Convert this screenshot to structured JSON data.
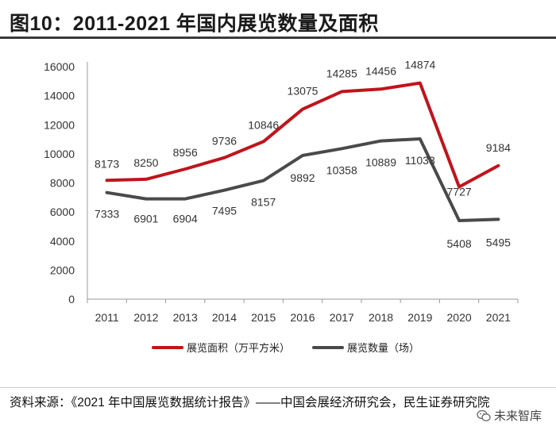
{
  "header": {
    "title": "图10：2011-2021 年国内展览数量及面积"
  },
  "chart_data": {
    "type": "line",
    "title": "图10：2011-2021 年国内展览数量及面积",
    "categories": [
      "2011",
      "2012",
      "2013",
      "2014",
      "2015",
      "2016",
      "2017",
      "2018",
      "2019",
      "2020",
      "2021"
    ],
    "ylim": [
      0,
      16000
    ],
    "yticks": [
      "0",
      "2000",
      "4000",
      "6000",
      "8000",
      "10000",
      "12000",
      "14000",
      "16000"
    ],
    "series": [
      {
        "name": "展览面积（万平方米）",
        "color": "#c0141c",
        "values": [
          8173,
          8250,
          8956,
          9736,
          10846,
          13075,
          14285,
          14456,
          14874,
          7727,
          9184
        ],
        "labels": [
          "8173",
          "8250",
          "8956",
          "9736",
          "10846",
          "13075",
          "14285",
          "14456",
          "14874",
          "7727",
          "9184"
        ]
      },
      {
        "name": "展览数量（场）",
        "color": "#4a4a4a",
        "values": [
          7333,
          6901,
          6904,
          7495,
          8157,
          9892,
          10358,
          10889,
          11033,
          5408,
          5495
        ],
        "labels": [
          "7333",
          "6901",
          "6904",
          "7495",
          "8157",
          "9892",
          "10358",
          "10889",
          "11033",
          "5408",
          "5495"
        ]
      }
    ],
    "legend_position": "bottom"
  },
  "footer": {
    "source": "资料来源：《2021 年中国展览数据统计报告》——中国会展经济研究会，民生证券研究院",
    "watermark": "未来智库"
  }
}
